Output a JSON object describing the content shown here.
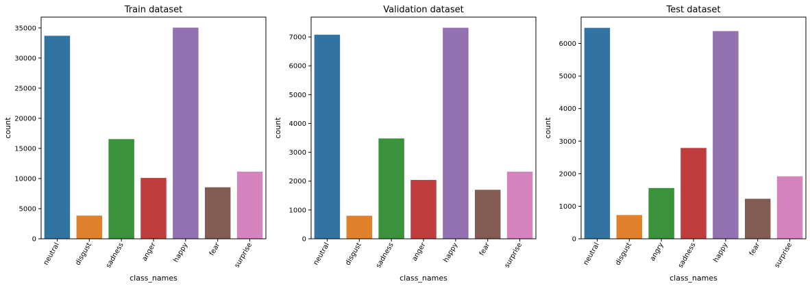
{
  "colors": [
    "#3274a1",
    "#e1812c",
    "#3a923a",
    "#c03d3e",
    "#9372b2",
    "#845b53",
    "#d684bd"
  ],
  "chart_data": [
    {
      "type": "bar",
      "title": "Train dataset",
      "xlabel": "class_names",
      "ylabel": "count",
      "categories": [
        "neutral",
        "disgust",
        "sadness",
        "anger",
        "happy",
        "fear",
        "surprise"
      ],
      "values": [
        33700,
        3850,
        16550,
        10100,
        35050,
        8550,
        11150
      ],
      "ylim": [
        0,
        36800
      ],
      "yticks": [
        0,
        5000,
        10000,
        15000,
        20000,
        25000,
        30000,
        35000
      ],
      "grid": false
    },
    {
      "type": "bar",
      "title": "Validation dataset",
      "xlabel": "class_names",
      "ylabel": "count",
      "categories": [
        "neutral",
        "disgust",
        "sadness",
        "anger",
        "happy",
        "fear",
        "surprise"
      ],
      "values": [
        7080,
        800,
        3480,
        2040,
        7320,
        1700,
        2330
      ],
      "ylim": [
        0,
        7690
      ],
      "yticks": [
        0,
        1000,
        2000,
        3000,
        4000,
        5000,
        6000,
        7000
      ],
      "grid": false
    },
    {
      "type": "bar",
      "title": "Test dataset",
      "xlabel": "class_names",
      "ylabel": "count",
      "categories": [
        "neutral",
        "disgust",
        "angry",
        "sadness",
        "happy",
        "fear",
        "surprise"
      ],
      "values": [
        6480,
        730,
        1560,
        2790,
        6380,
        1230,
        1920
      ],
      "ylim": [
        0,
        6810
      ],
      "yticks": [
        0,
        1000,
        2000,
        3000,
        4000,
        5000,
        6000
      ],
      "grid": false
    }
  ]
}
